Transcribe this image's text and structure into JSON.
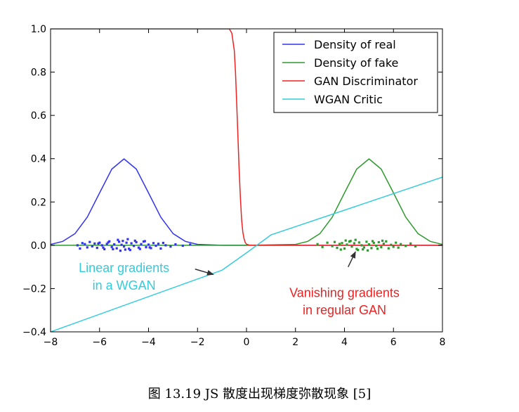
{
  "caption": "图 13.19 JS 散度出现梯度弥散现象 [5]",
  "chart_data": {
    "type": "line",
    "xlim": [
      -8,
      8
    ],
    "ylim": [
      -0.4,
      1.0
    ],
    "xticks": [
      -8,
      -6,
      -4,
      -2,
      0,
      2,
      4,
      6,
      8
    ],
    "xtick_labels": [
      "−8",
      "−6",
      "−4",
      "−2",
      "0",
      "2",
      "4",
      "6",
      "8"
    ],
    "yticks": [
      -0.4,
      -0.2,
      0.0,
      0.2,
      0.4,
      0.6,
      0.8,
      1.0
    ],
    "ytick_labels": [
      "−0.4",
      "−0.2",
      "0.0",
      "0.2",
      "0.4",
      "0.6",
      "0.8",
      "1.0"
    ],
    "grid": false,
    "legend_position": "top-right",
    "colors": {
      "real": "#3333ee",
      "fake": "#2e9a2e",
      "discriminator": "#ee2222",
      "critic": "#33ccdd"
    },
    "series": [
      {
        "name": "Density of real",
        "key": "real",
        "x": [
          -8.0,
          -7.5,
          -7.0,
          -6.5,
          -6.0,
          -5.5,
          -5.0,
          -4.5,
          -4.0,
          -3.5,
          -3.0,
          -2.5,
          -2.0,
          -1.0,
          0.0,
          2.0,
          4.0,
          6.0,
          8.0
        ],
        "y": [
          0.004,
          0.018,
          0.054,
          0.13,
          0.242,
          0.352,
          0.399,
          0.352,
          0.242,
          0.13,
          0.054,
          0.018,
          0.004,
          0.0,
          0.0,
          0.0,
          0.0,
          0.0,
          0.0
        ]
      },
      {
        "name": "Density of fake",
        "key": "fake",
        "x": [
          -8.0,
          -4.0,
          0.0,
          2.0,
          2.5,
          3.0,
          3.5,
          4.0,
          4.5,
          5.0,
          5.5,
          6.0,
          6.5,
          7.0,
          7.5,
          8.0
        ],
        "y": [
          0.0,
          0.0,
          0.0,
          0.004,
          0.018,
          0.054,
          0.13,
          0.242,
          0.352,
          0.399,
          0.352,
          0.242,
          0.13,
          0.054,
          0.018,
          0.004
        ]
      },
      {
        "name": "GAN Discriminator",
        "key": "discriminator",
        "x": [
          -8.0,
          -0.7,
          -0.6,
          -0.5,
          -0.45,
          -0.4,
          -0.35,
          -0.3,
          -0.25,
          -0.2,
          -0.15,
          -0.1,
          -0.05,
          0.0,
          0.1,
          0.3,
          8.0
        ],
        "y": [
          1.0,
          1.0,
          0.98,
          0.9,
          0.8,
          0.65,
          0.5,
          0.35,
          0.22,
          0.12,
          0.06,
          0.03,
          0.012,
          0.005,
          0.001,
          0.0,
          0.0
        ]
      },
      {
        "name": "WGAN Critic",
        "key": "critic",
        "x": [
          -8.0,
          -1.0,
          0.0,
          1.0,
          8.0
        ],
        "y": [
          -0.4,
          -0.115,
          -0.035,
          0.048,
          0.315
        ]
      }
    ],
    "scatter": [
      {
        "key": "real",
        "x": [
          -6.9,
          -6.8,
          -6.7,
          -6.6,
          -6.5,
          -6.4,
          -6.3,
          -6.2,
          -6.1,
          -6.0,
          -5.9,
          -5.8,
          -5.7,
          -5.6,
          -5.5,
          -5.4,
          -5.3,
          -5.2,
          -5.1,
          -5.0,
          -4.9,
          -4.8,
          -4.7,
          -4.6,
          -4.5,
          -4.4,
          -4.3,
          -4.2,
          -4.1,
          -4.0,
          -3.9,
          -3.8,
          -3.7,
          -3.6,
          -3.5,
          -3.4,
          -3.3,
          -3.1,
          -2.9,
          -2.6,
          -2.3,
          -5.05,
          -4.95,
          -5.25,
          -4.75,
          -5.45,
          -4.55,
          -5.65,
          -4.35,
          -5.85,
          -4.15,
          -6.05,
          -3.95,
          -5.15,
          -4.85
        ],
        "y": [
          0.0,
          -0.015,
          0.01,
          0.005,
          -0.01,
          0.015,
          -0.005,
          0.008,
          -0.012,
          0.012,
          0.0,
          -0.018,
          0.006,
          0.018,
          -0.008,
          0.004,
          -0.014,
          0.016,
          0.002,
          -0.006,
          0.012,
          -0.016,
          0.009,
          -0.003,
          0.014,
          -0.011,
          0.005,
          0.017,
          -0.009,
          0.003,
          -0.013,
          0.01,
          -0.002,
          0.007,
          -0.015,
          0.011,
          0.0,
          -0.006,
          0.004,
          -0.002,
          0.003,
          0.02,
          -0.02,
          0.025,
          -0.022,
          -0.018,
          0.021,
          0.013,
          -0.017,
          -0.011,
          0.019,
          0.008,
          -0.01,
          -0.025,
          0.028
        ]
      },
      {
        "key": "fake",
        "x": [
          2.9,
          3.1,
          3.3,
          3.5,
          3.6,
          3.7,
          3.8,
          3.9,
          4.0,
          4.1,
          4.2,
          4.3,
          4.4,
          4.5,
          4.6,
          4.7,
          4.8,
          4.9,
          5.0,
          5.1,
          5.2,
          5.3,
          5.4,
          5.5,
          5.6,
          5.7,
          5.8,
          5.9,
          6.0,
          6.1,
          6.2,
          6.3,
          6.5,
          6.7,
          6.9,
          4.45,
          4.55,
          4.25,
          4.75,
          4.05,
          4.95,
          5.15,
          5.35,
          3.85,
          5.55
        ],
        "y": [
          0.005,
          -0.008,
          0.012,
          -0.004,
          0.015,
          -0.012,
          0.006,
          0.01,
          -0.015,
          0.003,
          0.017,
          -0.006,
          0.009,
          -0.017,
          0.013,
          0.0,
          -0.01,
          0.016,
          0.004,
          -0.013,
          0.011,
          -0.002,
          0.014,
          -0.009,
          0.007,
          0.018,
          -0.014,
          0.002,
          -0.007,
          0.012,
          -0.011,
          0.005,
          -0.003,
          0.008,
          -0.005,
          0.025,
          -0.022,
          0.02,
          -0.019,
          0.022,
          -0.024,
          0.019,
          -0.016,
          -0.02,
          0.021
        ]
      }
    ],
    "annotations": [
      {
        "key": "critic",
        "lines": [
          "Linear gradients",
          "in a WGAN"
        ],
        "text_x": -5.0,
        "text_y": [
          -0.105,
          -0.185
        ],
        "arrow_from": [
          -2.1,
          -0.11
        ],
        "arrow_to": [
          -1.35,
          -0.135
        ]
      },
      {
        "key": "discriminator",
        "lines": [
          "Vanishing gradients",
          "in regular GAN"
        ],
        "text_x": 4.0,
        "text_y": [
          -0.22,
          -0.3
        ],
        "arrow_from": [
          4.15,
          -0.1
        ],
        "arrow_to": [
          4.45,
          -0.03
        ]
      }
    ]
  }
}
